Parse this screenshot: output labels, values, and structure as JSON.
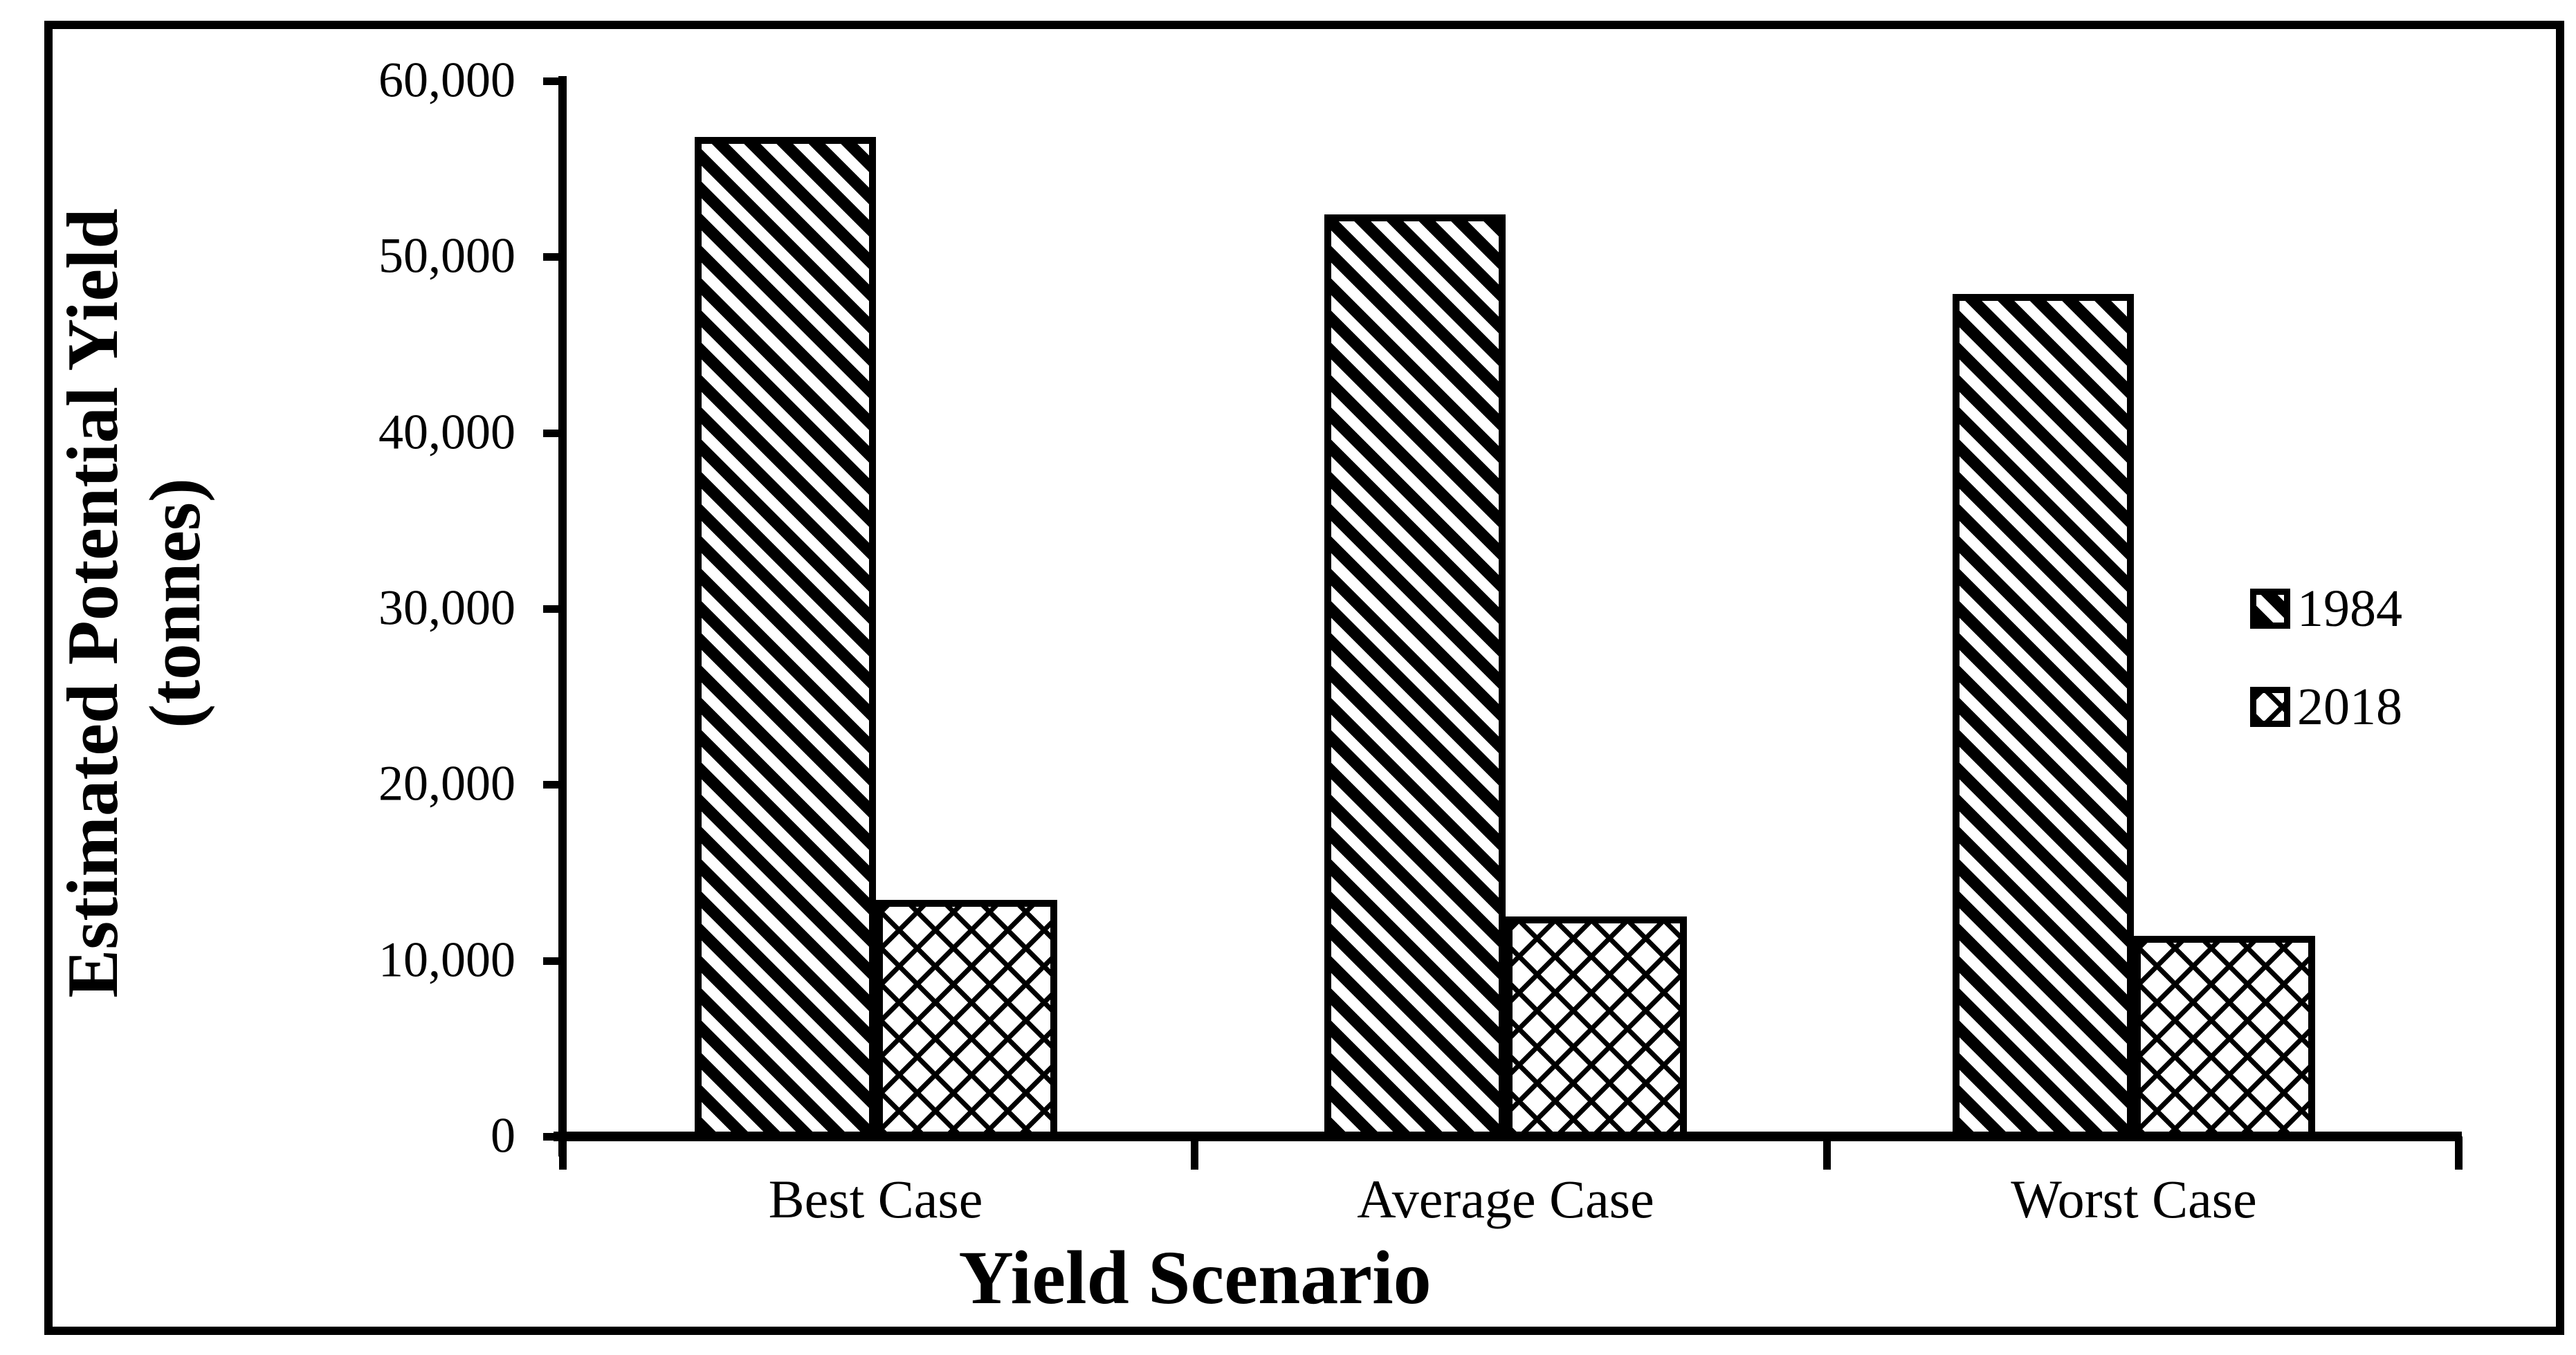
{
  "colors": {
    "ink": "#000000",
    "paper": "#ffffff"
  },
  "chart_data": {
    "type": "bar",
    "title": "",
    "categories": [
      "Best Case",
      "Average Case",
      "Worst Case"
    ],
    "series": [
      {
        "name": "1984",
        "pattern": "diagonal-hatch",
        "values": [
          56800,
          52400,
          47900
        ]
      },
      {
        "name": "2018",
        "pattern": "diamond-crosshatch",
        "values": [
          13450,
          12500,
          11400
        ]
      }
    ],
    "xlabel": "Yield Scenario",
    "ylabel_line1": "Estimated Potential Yield",
    "ylabel_line2": "(tonnes)",
    "ylim": [
      0,
      60000
    ],
    "ytick_step": 10000,
    "ytick_labels": [
      "0",
      "10,000",
      "20,000",
      "30,000",
      "40,000",
      "50,000",
      "60,000"
    ],
    "legend": {
      "position": "right",
      "entries": [
        "1984",
        "2018"
      ]
    },
    "grid": false
  }
}
